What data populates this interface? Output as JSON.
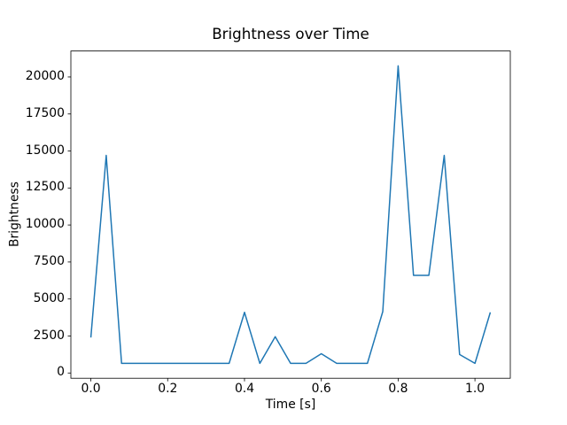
{
  "figure": {
    "background_color": "#ffffff",
    "text_color": "#000000"
  },
  "chart_data": {
    "type": "line",
    "title": "Brightness over Time",
    "xlabel": "Time [s]",
    "ylabel": "Brightness",
    "line_color": "#1f77b4",
    "axes_color": "#000000",
    "grid": false,
    "x": [
      0.0,
      0.04,
      0.08,
      0.12,
      0.16,
      0.2,
      0.24,
      0.28,
      0.32,
      0.36,
      0.4,
      0.44,
      0.48,
      0.52,
      0.56,
      0.6,
      0.64,
      0.68,
      0.72,
      0.76,
      0.8,
      0.84,
      0.88,
      0.92,
      0.96,
      1.0,
      1.04
    ],
    "y": [
      2400,
      14700,
      650,
      650,
      650,
      650,
      650,
      650,
      650,
      650,
      4100,
      650,
      2450,
      650,
      650,
      1300,
      650,
      650,
      650,
      4150,
      20750,
      6600,
      6600,
      14700,
      1250,
      650,
      4100
    ],
    "xlim": [
      -0.052,
      1.092
    ],
    "ylim": [
      -355,
      21755
    ],
    "x_tick_values": [
      0.0,
      0.2,
      0.4,
      0.6,
      0.8,
      1.0
    ],
    "x_tick_labels": [
      "0.0",
      "0.2",
      "0.4",
      "0.6",
      "0.8",
      "1.0"
    ],
    "y_tick_values": [
      0,
      2500,
      5000,
      7500,
      10000,
      12500,
      15000,
      17500,
      20000
    ],
    "y_tick_labels": [
      "0",
      "2500",
      "5000",
      "7500",
      "10000",
      "12500",
      "15000",
      "17500",
      "20000"
    ]
  }
}
